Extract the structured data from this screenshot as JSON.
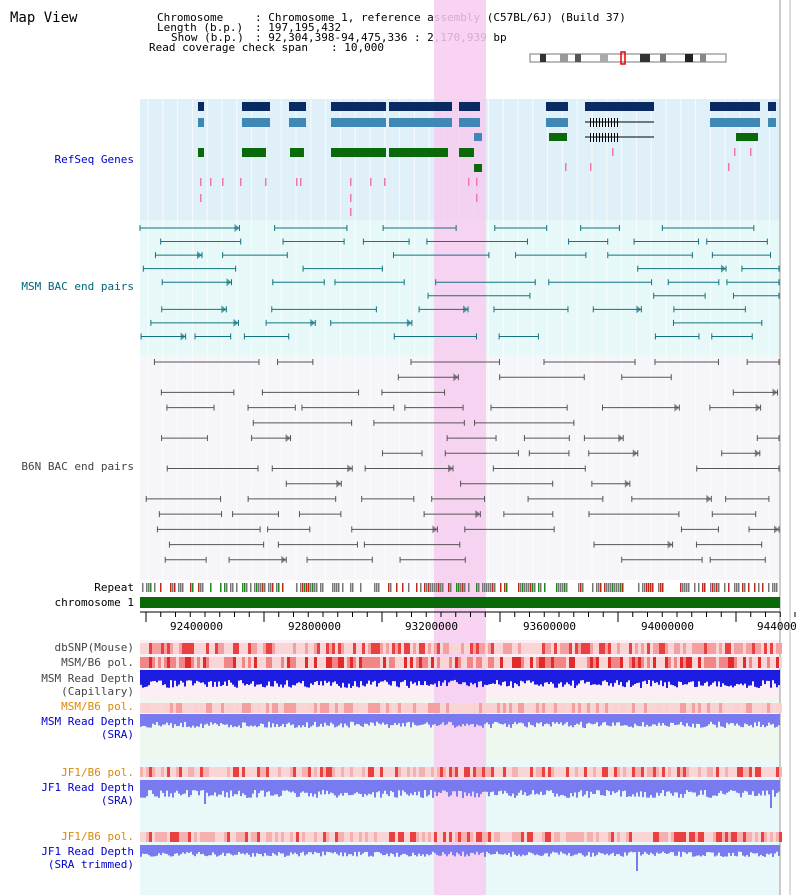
{
  "title": "Map View",
  "info": {
    "chromosome_label": "Chromosome",
    "chromosome_value": ": Chromosome 1, reference assembly (C57BL/6J) (Build 37)",
    "length_label": "Length (b.p.)",
    "length_value": ": 197,195,432",
    "show_label": "Show (b.p.)",
    "show_value": ": 92,304,398-94,475,336 : 2,170,939 bp",
    "span_label": "Read coverage check span",
    "span_value": ": 10,000"
  },
  "tracks": {
    "refseq": "RefSeq Genes",
    "msm_bac": "MSM BAC end pairs",
    "b6n_bac": "B6N BAC end pairs",
    "repeat": "Repeat",
    "chromosome": "chromosome 1",
    "dbsnp": "dbSNP(Mouse)",
    "msm_b6_pol_1": "MSM/B6 pol.",
    "msm_depth_cap_1": "MSM Read Depth",
    "msm_depth_cap_2": "(Capillary)",
    "msm_b6_pol_2": "MSM/B6 pol.",
    "msm_depth_sra_1": "MSM Read Depth",
    "msm_depth_sra_2": "(SRA)",
    "jf1_pol_1": "JF1/B6 pol.",
    "jf1_depth_1": "JF1 Read Depth",
    "jf1_depth_2": "(SRA)",
    "jf1_pol_2": "JF1/B6 pol.",
    "jf1_trim_1": "JF1 Read Depth",
    "jf1_trim_2": "(SRA trimmed)"
  },
  "axis": {
    "ticks": [
      "92400000",
      "92800000",
      "93200000",
      "93600000",
      "94000000",
      "944000"
    ]
  },
  "colors": {
    "refseq_bg": "#dff0f8",
    "msm_bg": "#e6f8f8",
    "b6n_bg": "#f6f6fa",
    "highlight": "#f7cdf0",
    "gene_dark": "#0a2a62",
    "gene_mid": "#3f87b5",
    "gene_green": "#0a6a0a",
    "msm_line": "#137380",
    "b6n_line": "#555555",
    "chromosome": "#0a6a0a",
    "depth_blue": "#1c1ce0",
    "depth_light": "#7a7af0",
    "label_blue": "#0000cc",
    "label_teal": "#006677",
    "label_gray": "#444444",
    "label_orange": "#dd8800"
  }
}
